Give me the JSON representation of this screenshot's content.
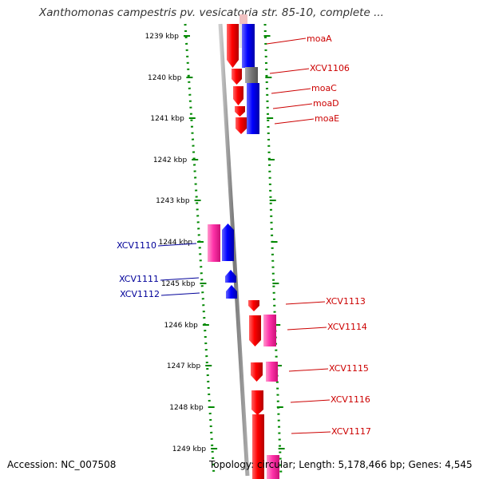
{
  "header": {
    "title": "Xanthomonas campestris pv. vesicatoria str. 85-10, complete ..."
  },
  "footer": {
    "accession": "Accession: NC_007508",
    "summary": "Topology: circular; Length: 5,178,466 bp; Genes: 4,545"
  },
  "colors": {
    "forward_gene": "#ff0000",
    "reverse_gene": "#0000ff",
    "pseudo_gene": "#ff33aa",
    "other_feature": "#777777",
    "ruler_tick": "#008800",
    "label_right": "#cc0000",
    "label_left": "#000099"
  },
  "ruler": {
    "ticks": [
      "1239 kbp",
      "1240 kbp",
      "1241 kbp",
      "1242 kbp",
      "1243 kbp",
      "1244 kbp",
      "1245 kbp",
      "1246 kbp",
      "1247 kbp",
      "1248 kbp",
      "1249 kbp"
    ]
  },
  "gene_labels": [
    {
      "name": "moaA",
      "side": "right"
    },
    {
      "name": "XCV1106",
      "side": "right"
    },
    {
      "name": "moaC",
      "side": "right"
    },
    {
      "name": "moaD",
      "side": "right"
    },
    {
      "name": "moaE",
      "side": "right"
    },
    {
      "name": "XCV1110",
      "side": "left"
    },
    {
      "name": "XCV1111",
      "side": "left"
    },
    {
      "name": "XCV1112",
      "side": "left"
    },
    {
      "name": "XCV1113",
      "side": "right"
    },
    {
      "name": "XCV1114",
      "side": "right"
    },
    {
      "name": "XCV1115",
      "side": "right"
    },
    {
      "name": "XCV1116",
      "side": "right"
    },
    {
      "name": "XCV1117",
      "side": "right"
    }
  ]
}
